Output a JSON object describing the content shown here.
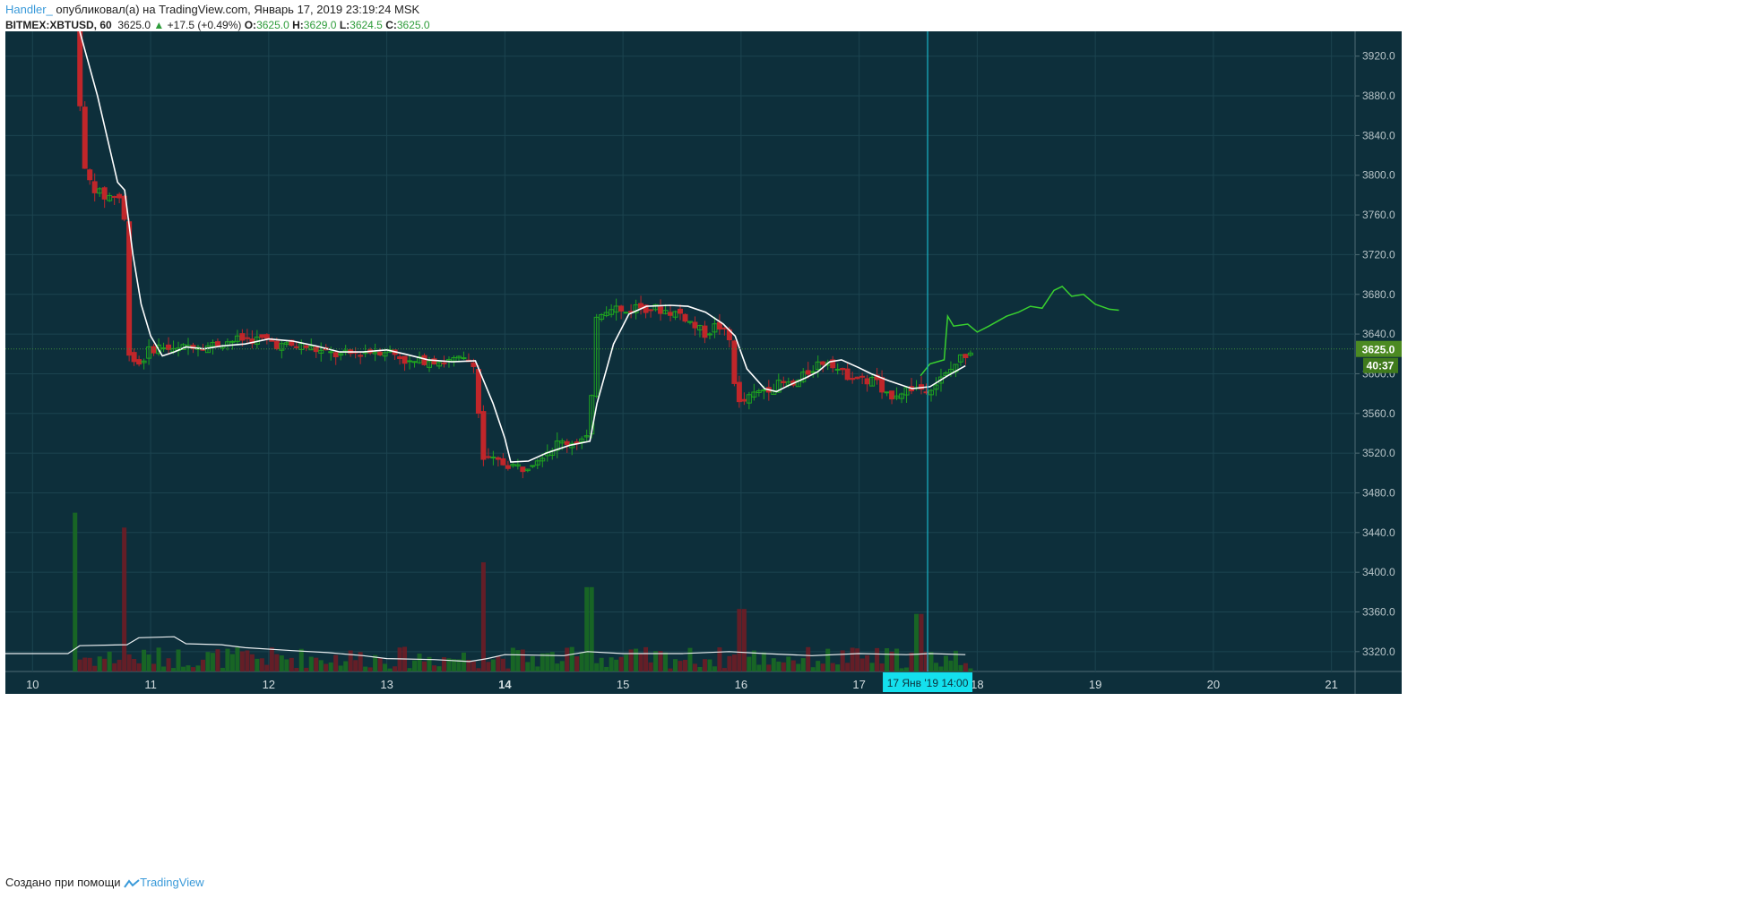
{
  "header": {
    "author": "Handler_",
    "published_text": "опубликовал(а) на TradingView.com, Январь 17, 2019 23:19:24 MSK",
    "symbol": "BITMEX:XBTUSD, 60",
    "last": "3625.0",
    "change_arrow": "▲",
    "change": "+17.5 (+0.49%)",
    "o_label": "O:",
    "o_value": "3625.0",
    "h_label": "H:",
    "h_value": "3629.0",
    "l_label": "L:",
    "l_value": "3624.5",
    "c_label": "C:",
    "c_value": "3625.0"
  },
  "footer": {
    "created_with": "Создано при помощи",
    "brand": "TradingView"
  },
  "colors": {
    "background": "#0d2f3b",
    "grid": "#1c4450",
    "up": "#1fa51f",
    "down": "#c0262a",
    "ma": "#ffffff",
    "forecast": "#39d12f",
    "crosshair": "#19b6c8",
    "price_badge": "#4c8a22"
  },
  "chart_data": {
    "type": "candlestick",
    "ylim": [
      3300,
      3945
    ],
    "y_ticks": [
      "3320.0",
      "3360.0",
      "3400.0",
      "3440.0",
      "3480.0",
      "3520.0",
      "3560.0",
      "3600.0",
      "3640.0",
      "3680.0",
      "3720.0",
      "3760.0",
      "3800.0",
      "3840.0",
      "3880.0",
      "3920.0"
    ],
    "x_range_days": [
      9.77,
      21.2
    ],
    "x_ticks": [
      {
        "day": 10,
        "label": "10",
        "bold": false
      },
      {
        "day": 11,
        "label": "11",
        "bold": false
      },
      {
        "day": 12,
        "label": "12",
        "bold": false
      },
      {
        "day": 13,
        "label": "13",
        "bold": false
      },
      {
        "day": 14,
        "label": "14",
        "bold": true
      },
      {
        "day": 15,
        "label": "15",
        "bold": false
      },
      {
        "day": 16,
        "label": "16",
        "bold": false
      },
      {
        "day": 17,
        "label": "17",
        "bold": false
      },
      {
        "day": 18,
        "label": "18",
        "bold": false
      },
      {
        "day": 19,
        "label": "19",
        "bold": false
      },
      {
        "day": 20,
        "label": "20",
        "bold": false
      },
      {
        "day": 21,
        "label": "21",
        "bold": false
      }
    ],
    "price_path": [
      [
        10.36,
        4020
      ],
      [
        10.42,
        3810
      ],
      [
        10.5,
        3790
      ],
      [
        10.6,
        3778
      ],
      [
        10.7,
        3780
      ],
      [
        10.77,
        3775
      ],
      [
        10.82,
        3618
      ],
      [
        10.9,
        3610
      ],
      [
        11.0,
        3625
      ],
      [
        11.1,
        3628
      ],
      [
        11.2,
        3622
      ],
      [
        11.35,
        3630
      ],
      [
        11.5,
        3628
      ],
      [
        11.6,
        3632
      ],
      [
        11.8,
        3635
      ],
      [
        12.0,
        3634
      ],
      [
        12.1,
        3628
      ],
      [
        12.3,
        3628
      ],
      [
        12.45,
        3622
      ],
      [
        12.6,
        3618
      ],
      [
        12.8,
        3622
      ],
      [
        13.0,
        3624
      ],
      [
        13.1,
        3618
      ],
      [
        13.2,
        3610
      ],
      [
        13.35,
        3615
      ],
      [
        13.5,
        3612
      ],
      [
        13.6,
        3614
      ],
      [
        13.75,
        3612
      ],
      [
        13.8,
        3515
      ],
      [
        13.9,
        3512
      ],
      [
        14.05,
        3508
      ],
      [
        14.15,
        3505
      ],
      [
        14.3,
        3518
      ],
      [
        14.45,
        3530
      ],
      [
        14.6,
        3532
      ],
      [
        14.72,
        3536
      ],
      [
        14.77,
        3660
      ],
      [
        14.85,
        3665
      ],
      [
        14.92,
        3670
      ],
      [
        15.0,
        3660
      ],
      [
        15.1,
        3668
      ],
      [
        15.3,
        3665
      ],
      [
        15.5,
        3660
      ],
      [
        15.6,
        3648
      ],
      [
        15.7,
        3640
      ],
      [
        15.8,
        3650
      ],
      [
        15.9,
        3635
      ],
      [
        15.97,
        3568
      ],
      [
        16.1,
        3578
      ],
      [
        16.2,
        3585
      ],
      [
        16.35,
        3590
      ],
      [
        16.45,
        3588
      ],
      [
        16.55,
        3600
      ],
      [
        16.65,
        3610
      ],
      [
        16.75,
        3615
      ],
      [
        16.85,
        3600
      ],
      [
        16.95,
        3598
      ],
      [
        17.05,
        3592
      ],
      [
        17.15,
        3595
      ],
      [
        17.2,
        3575
      ],
      [
        17.3,
        3580
      ],
      [
        17.45,
        3586
      ],
      [
        17.55,
        3585
      ],
      [
        17.65,
        3590
      ],
      [
        17.75,
        3600
      ],
      [
        17.85,
        3615
      ],
      [
        17.95,
        3625
      ]
    ],
    "moving_average": [
      [
        10.4,
        3945
      ],
      [
        10.55,
        3880
      ],
      [
        10.72,
        3793
      ],
      [
        10.78,
        3785
      ],
      [
        10.85,
        3720
      ],
      [
        10.92,
        3670
      ],
      [
        11.0,
        3638
      ],
      [
        11.1,
        3618
      ],
      [
        11.2,
        3622
      ],
      [
        11.3,
        3627
      ],
      [
        11.45,
        3625
      ],
      [
        11.6,
        3628
      ],
      [
        11.8,
        3630
      ],
      [
        12.0,
        3635
      ],
      [
        12.2,
        3633
      ],
      [
        12.4,
        3628
      ],
      [
        12.6,
        3622
      ],
      [
        12.8,
        3622
      ],
      [
        13.0,
        3624
      ],
      [
        13.15,
        3620
      ],
      [
        13.35,
        3614
      ],
      [
        13.55,
        3612
      ],
      [
        13.75,
        3613
      ],
      [
        13.9,
        3570
      ],
      [
        14.0,
        3535
      ],
      [
        14.05,
        3511
      ],
      [
        14.2,
        3512
      ],
      [
        14.35,
        3520
      ],
      [
        14.55,
        3528
      ],
      [
        14.72,
        3532
      ],
      [
        14.78,
        3570
      ],
      [
        14.92,
        3630
      ],
      [
        15.05,
        3660
      ],
      [
        15.2,
        3668
      ],
      [
        15.4,
        3669
      ],
      [
        15.55,
        3668
      ],
      [
        15.7,
        3662
      ],
      [
        15.85,
        3650
      ],
      [
        15.95,
        3638
      ],
      [
        16.05,
        3605
      ],
      [
        16.2,
        3585
      ],
      [
        16.3,
        3582
      ],
      [
        16.4,
        3588
      ],
      [
        16.55,
        3596
      ],
      [
        16.65,
        3602
      ],
      [
        16.75,
        3612
      ],
      [
        16.85,
        3614
      ],
      [
        17.0,
        3606
      ],
      [
        17.1,
        3600
      ],
      [
        17.25,
        3593
      ],
      [
        17.45,
        3585
      ],
      [
        17.6,
        3587
      ],
      [
        17.75,
        3598
      ],
      [
        17.9,
        3608
      ]
    ],
    "forecast": [
      [
        17.52,
        3598
      ],
      [
        17.6,
        3610
      ],
      [
        17.72,
        3614
      ],
      [
        17.75,
        3658
      ],
      [
        17.8,
        3648
      ],
      [
        17.92,
        3650
      ],
      [
        18.0,
        3642
      ],
      [
        18.1,
        3648
      ],
      [
        18.25,
        3658
      ],
      [
        18.35,
        3662
      ],
      [
        18.45,
        3668
      ],
      [
        18.55,
        3666
      ],
      [
        18.65,
        3684
      ],
      [
        18.72,
        3688
      ],
      [
        18.8,
        3678
      ],
      [
        18.9,
        3680
      ],
      [
        19.0,
        3670
      ],
      [
        19.12,
        3665
      ],
      [
        19.2,
        3664
      ]
    ],
    "volume_ma": [
      [
        9.77,
        3318
      ],
      [
        10.3,
        3318
      ],
      [
        10.4,
        3326
      ],
      [
        10.8,
        3327
      ],
      [
        10.9,
        3334
      ],
      [
        11.2,
        3335
      ],
      [
        11.3,
        3328
      ],
      [
        11.6,
        3327
      ],
      [
        11.8,
        3324
      ],
      [
        12.2,
        3321
      ],
      [
        12.5,
        3319
      ],
      [
        12.8,
        3316
      ],
      [
        13.0,
        3313
      ],
      [
        13.4,
        3312
      ],
      [
        13.7,
        3310
      ],
      [
        13.85,
        3313
      ],
      [
        14.0,
        3317
      ],
      [
        14.5,
        3316
      ],
      [
        14.7,
        3320
      ],
      [
        15.0,
        3318
      ],
      [
        15.5,
        3318
      ],
      [
        15.9,
        3320
      ],
      [
        16.2,
        3318
      ],
      [
        16.6,
        3316
      ],
      [
        17.0,
        3318
      ],
      [
        17.4,
        3317
      ],
      [
        17.6,
        3318
      ],
      [
        17.9,
        3317
      ]
    ],
    "crosshair": {
      "day": 17.58,
      "label": "17 Янв '19   14:00"
    },
    "last_price": {
      "value": 3625.0,
      "label": "3625.0",
      "timer": "40:37"
    }
  }
}
